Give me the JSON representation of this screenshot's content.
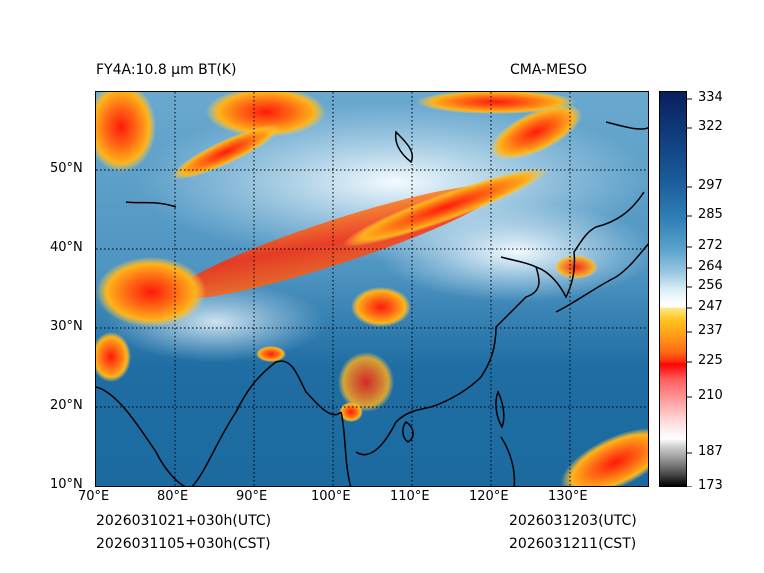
{
  "header": {
    "product": "FY4A:10.8 µm BT(K)",
    "model": "CMA-MESO"
  },
  "footer": {
    "init_utc": "2026031021+030h(UTC)",
    "init_cst": "2026031105+030h(CST)",
    "valid_utc": "2026031203(UTC)",
    "valid_cst": "2026031211(CST)"
  },
  "map": {
    "lat_labels": [
      "50°N",
      "40°N",
      "30°N",
      "20°N",
      "10°N"
    ],
    "lon_labels": [
      "70°E",
      "80°E",
      "90°E",
      "100°E",
      "110°E",
      "120°E",
      "130°E"
    ]
  },
  "colorbar": {
    "ticks": [
      "334",
      "322",
      "297",
      "285",
      "272",
      "264",
      "256",
      "247",
      "237",
      "225",
      "210",
      "187",
      "173"
    ],
    "values": [
      334,
      322,
      297,
      285,
      272,
      264,
      256,
      247,
      237,
      225,
      210,
      187,
      173
    ]
  },
  "colors": {
    "cold": "#0a1f5c",
    "ocean": "#1b6aa0",
    "cloud_warm": "#ff6a14",
    "cloud_top": "#ff0000"
  }
}
